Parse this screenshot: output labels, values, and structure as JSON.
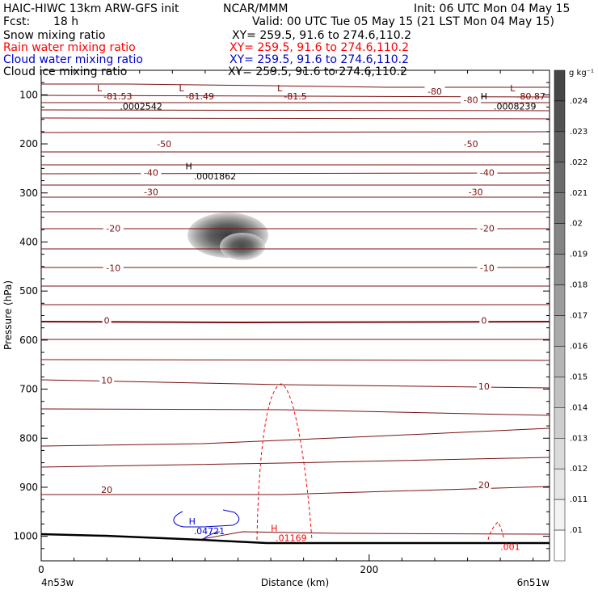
{
  "header": {
    "title": "HAIC-HIWC 13km ARW-GFS init",
    "org": "NCAR/MMM",
    "init": "Init: 06 UTC Mon 04 May 15",
    "fcst_label": "Fcst:",
    "fcst_value": "18 h",
    "valid": "Valid: 00 UTC Tue 05 May 15 (21 LST Mon 04 May 15)"
  },
  "fields": [
    {
      "name": "Snow mixing ratio",
      "xy": "XY= 259.5, 91.6 to 274.6,110.2",
      "color": "#000000"
    },
    {
      "name": "Rain water mixing ratio",
      "xy": "XY= 259.5, 91.6 to 274.6,110.2",
      "color": "#ff0000"
    },
    {
      "name": "Cloud water mixing ratio",
      "xy": "XY= 259.5, 91.6 to 274.6,110.2",
      "color": "#0000cc"
    },
    {
      "name": "Cloud ice mixing ratio",
      "xy": "XY= 259.5, 91.6 to 274.6,110.2",
      "color": "#000000"
    }
  ],
  "chart_data": {
    "type": "contour",
    "ylabel": "Pressure (hPa)",
    "xlabel": "Distance (km)",
    "x_left_label": "4n53w",
    "x_right_label": "6n51w",
    "x_ticks": [
      {
        "value": 0,
        "label": "0"
      },
      {
        "value": 200,
        "label": "200"
      }
    ],
    "xlim": [
      0,
      310
    ],
    "y_ticks": [
      {
        "value": 100,
        "label": "100"
      },
      {
        "value": 200,
        "label": "200"
      },
      {
        "value": 300,
        "label": "300"
      },
      {
        "value": 400,
        "label": "400"
      },
      {
        "value": 500,
        "label": "500"
      },
      {
        "value": 600,
        "label": "600"
      },
      {
        "value": 700,
        "label": "700"
      },
      {
        "value": 800,
        "label": "800"
      },
      {
        "value": 900,
        "label": "900"
      },
      {
        "value": 1000,
        "label": "1000"
      }
    ],
    "ylim": [
      50,
      1050
    ],
    "colorbar": {
      "unit": "g kg⁻¹",
      "ticks": [
        ".024",
        ".023",
        ".022",
        ".021",
        ".02",
        ".019",
        ".018",
        ".017",
        ".016",
        ".015",
        ".014",
        ".013",
        ".012",
        ".011",
        ".01"
      ]
    },
    "temperature_labels": [
      {
        "label": "-50",
        "x": 75,
        "p": 200
      },
      {
        "label": "-50",
        "x": 262,
        "p": 200
      },
      {
        "label": "-40",
        "x": 67,
        "p": 258
      },
      {
        "label": "-40",
        "x": 272,
        "p": 258
      },
      {
        "label": "-30",
        "x": 67,
        "p": 298
      },
      {
        "label": "-30",
        "x": 265,
        "p": 298
      },
      {
        "label": "-20",
        "x": 44,
        "p": 372
      },
      {
        "label": "-20",
        "x": 272,
        "p": 372
      },
      {
        "label": "-10",
        "x": 44,
        "p": 453
      },
      {
        "label": "-10",
        "x": 272,
        "p": 453
      },
      {
        "label": "0",
        "x": 40,
        "p": 560
      },
      {
        "label": "0",
        "x": 270,
        "p": 560
      },
      {
        "label": "10",
        "x": 40,
        "p": 682
      },
      {
        "label": "10",
        "x": 270,
        "p": 694
      },
      {
        "label": "20",
        "x": 40,
        "p": 905
      },
      {
        "label": "20",
        "x": 270,
        "p": 895
      },
      {
        "label": "-80",
        "x": 240,
        "p": 93
      },
      {
        "label": "-80",
        "x": 262,
        "p": 110
      }
    ],
    "extrema_labels": [
      {
        "label": "L",
        "x": 34,
        "p": 93,
        "color": "#7a0000"
      },
      {
        "label": "-81.53",
        "x": 38,
        "p": 109,
        "color": "#7a0000"
      },
      {
        "label": ".0002542",
        "x": 48,
        "p": 130,
        "color": "#000000"
      },
      {
        "label": "L",
        "x": 84,
        "p": 93,
        "color": "#7a0000"
      },
      {
        "label": "-81.49",
        "x": 88,
        "p": 109,
        "color": "#7a0000"
      },
      {
        "label": "L",
        "x": 144,
        "p": 93,
        "color": "#7a0000"
      },
      {
        "label": "-81.5",
        "x": 148,
        "p": 109,
        "color": "#7a0000"
      },
      {
        "label": "L",
        "x": 286,
        "p": 93,
        "color": "#7a0000"
      },
      {
        "label": "-80.87",
        "x": 290,
        "p": 109,
        "color": "#7a0000"
      },
      {
        "label": "H",
        "x": 268,
        "p": 109,
        "color": "#000000"
      },
      {
        "label": ".0008239",
        "x": 276,
        "p": 130,
        "color": "#000000"
      },
      {
        "label": "H",
        "x": 88,
        "p": 252,
        "color": "#000000"
      },
      {
        "label": ".0001862",
        "x": 93,
        "p": 272,
        "color": "#000000"
      },
      {
        "label": "H",
        "x": 90,
        "p": 976,
        "color": "#0000cc"
      },
      {
        "label": ".04721",
        "x": 93,
        "p": 996,
        "color": "#0000cc"
      },
      {
        "label": "H",
        "x": 140,
        "p": 990,
        "color": "#ff0000"
      },
      {
        "label": ".01169",
        "x": 143,
        "p": 1010,
        "color": "#ff0000"
      },
      {
        "label": ".001",
        "x": 280,
        "p": 1028,
        "color": "#ff0000"
      }
    ]
  }
}
